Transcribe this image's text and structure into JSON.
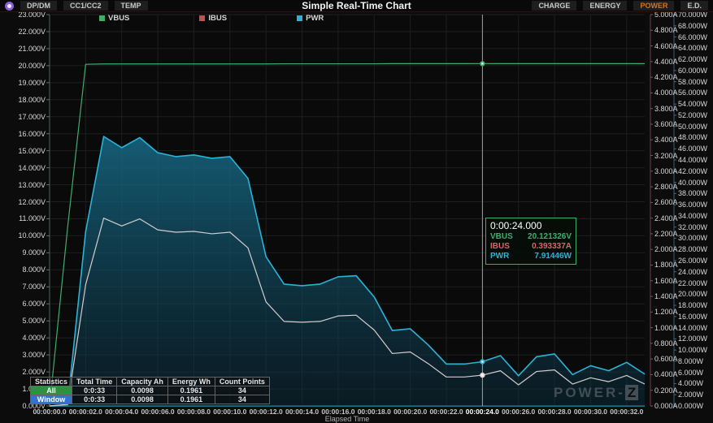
{
  "topbar": {
    "logo_icon": "power-z-logo",
    "left_buttons": [
      "DP/DM",
      "CC1/CC2",
      "TEMP"
    ],
    "title": "Simple Real-Time Chart",
    "right_buttons": [
      "CHARGE",
      "ENERGY",
      "POWER",
      "E.D."
    ],
    "active_right_button": "POWER"
  },
  "chart_data": {
    "type": "line",
    "title": "Simple Real-Time Chart",
    "xlabel": "Elapsed Time",
    "x_range_seconds": [
      0,
      33
    ],
    "x": [
      0,
      1,
      2,
      3,
      4,
      5,
      6,
      7,
      8,
      9,
      10,
      11,
      12,
      13,
      14,
      15,
      16,
      17,
      18,
      19,
      20,
      21,
      22,
      23,
      24,
      25,
      26,
      27,
      28,
      29,
      30,
      31,
      32,
      33
    ],
    "x_tick_labels": [
      "00:00:00.0",
      "00:00:02.0",
      "00:00:04.0",
      "00:00:06.0",
      "00:00:08.0",
      "00:00:10.0",
      "00:00:12.0",
      "00:00:14.0",
      "00:00:16.0",
      "00:00:18.0",
      "00:00:20.0",
      "00:00:22.0",
      "00:00:24.0",
      "00:00:26.0",
      "00:00:28.0",
      "00:00:30.0",
      "00:00:32.0"
    ],
    "grid": true,
    "legend_position": "top-left",
    "axes": {
      "voltage": {
        "min": 0,
        "max": 23,
        "step": 1,
        "unit": "V",
        "side": "left",
        "tick_labels": [
          "23.000V",
          "22.000V",
          "21.000V",
          "20.000V",
          "19.000V",
          "18.000V",
          "17.000V",
          "16.000V",
          "15.000V",
          "14.000V",
          "13.000V",
          "12.000V",
          "11.000V",
          "10.000V",
          "9.000V",
          "8.000V",
          "7.000V",
          "6.000V",
          "5.000V",
          "4.000V",
          "3.000V",
          "2.000V",
          "1.000V",
          "0.000V"
        ]
      },
      "current": {
        "min": 0,
        "max": 5,
        "step": 0.2,
        "unit": "A",
        "side": "right-inner",
        "tick_labels": [
          "5.000A",
          "4.800A",
          "4.600A",
          "4.400A",
          "4.200A",
          "4.000A",
          "3.800A",
          "3.600A",
          "3.400A",
          "3.200A",
          "3.000A",
          "2.800A",
          "2.600A",
          "2.400A",
          "2.200A",
          "2.000A",
          "1.800A",
          "1.600A",
          "1.400A",
          "1.200A",
          "1.000A",
          "0.800A",
          "0.600A",
          "0.400A",
          "0.200A",
          "0.000A"
        ]
      },
      "power": {
        "min": 0,
        "max": 70,
        "step": 2,
        "unit": "W",
        "side": "right-outer",
        "tick_labels": [
          "70.000W",
          "68.000W",
          "66.000W",
          "64.000W",
          "62.000W",
          "60.000W",
          "58.000W",
          "56.000W",
          "54.000W",
          "52.000W",
          "50.000W",
          "48.000W",
          "46.000W",
          "44.000W",
          "42.000W",
          "40.000W",
          "38.000W",
          "36.000W",
          "34.000W",
          "32.000W",
          "30.000W",
          "28.000W",
          "26.000W",
          "24.000W",
          "22.000W",
          "20.000W",
          "18.000W",
          "16.000W",
          "14.000W",
          "12.000W",
          "10.000W",
          "8.000W",
          "6.000W",
          "4.000W",
          "2.000W",
          "0.000W"
        ]
      }
    },
    "series": [
      {
        "name": "VBUS",
        "unit": "V",
        "axis": "voltage",
        "color": "#3fae6a",
        "values": [
          0,
          10.5,
          20.08,
          20.1,
          20.1,
          20.1,
          20.1,
          20.1,
          20.1,
          20.1,
          20.1,
          20.1,
          20.1,
          20.11,
          20.11,
          20.11,
          20.11,
          20.11,
          20.11,
          20.12,
          20.12,
          20.12,
          20.12,
          20.12,
          20.121326,
          20.12,
          20.12,
          20.12,
          20.12,
          20.12,
          20.12,
          20.12,
          20.12,
          20.12
        ]
      },
      {
        "name": "IBUS",
        "unit": "A",
        "axis": "current",
        "color": "#c25050",
        "line_color": "#d6cccd",
        "values": [
          0,
          0.02,
          1.55,
          2.4,
          2.3,
          2.39,
          2.25,
          2.22,
          2.23,
          2.2,
          2.22,
          2.02,
          1.33,
          1.08,
          1.07,
          1.08,
          1.15,
          1.16,
          0.97,
          0.67,
          0.69,
          0.54,
          0.37,
          0.37,
          0.393337,
          0.45,
          0.27,
          0.44,
          0.46,
          0.28,
          0.36,
          0.31,
          0.39,
          0.28
        ]
      },
      {
        "name": "PWR",
        "unit": "W",
        "axis": "power",
        "color": "#2bb3d6",
        "area_fill": true,
        "values": [
          0,
          0.2,
          31.2,
          48.2,
          46.2,
          48,
          45.3,
          44.6,
          44.9,
          44.3,
          44.6,
          40.7,
          26.7,
          21.8,
          21.5,
          21.8,
          23.1,
          23.3,
          19.5,
          13.5,
          13.8,
          10.9,
          7.5,
          7.5,
          7.91446,
          9,
          5.4,
          8.8,
          9.3,
          5.6,
          7.2,
          6.3,
          7.8,
          5.7
        ]
      }
    ]
  },
  "cursor": {
    "time_label": "0:00:24.000",
    "t": 24,
    "x_tick_highlight": "00:00:24.0",
    "rows": [
      {
        "name": "VBUS",
        "value": "20.121326V"
      },
      {
        "name": "IBUS",
        "value": "0.393337A"
      },
      {
        "name": "PWR",
        "value": "7.91446W"
      }
    ]
  },
  "stats_table": {
    "headers": [
      "Statistics",
      "Total Time",
      "Capacity Ah",
      "Energy Wh",
      "Count Points"
    ],
    "rows": [
      {
        "label": "All",
        "values": [
          "0:0:33",
          "0.0098",
          "0.1961",
          "34"
        ]
      },
      {
        "label": "Window",
        "values": [
          "0:0:33",
          "0.0098",
          "0.1961",
          "34"
        ]
      }
    ]
  },
  "watermark": {
    "prefix": "POWER-",
    "z": "Z"
  },
  "colors": {
    "background": "#0c0c0c",
    "plot_bg": "#0a0a0a",
    "grid": "#1d201f",
    "accent_orange": "#d8731e",
    "vbus": "#3fae6a",
    "ibus": "#c25050",
    "ibus_line": "#d6cccd",
    "pwr": "#2bb3d6",
    "pwr_fill_top": "#176e8c",
    "pwr_fill_bottom": "#0a2e3f",
    "axis_voltage_line": "#3e5c49",
    "axis_current_line": "#5e3642",
    "axis_power_line": "#2d4f66",
    "x_axis_line": "#1b7186",
    "crosshair": "#d0d0d0",
    "stats_all_bg": "#2f9140",
    "stats_window_bg": "#3273cf",
    "tooltip_border": "#3fae6a"
  }
}
